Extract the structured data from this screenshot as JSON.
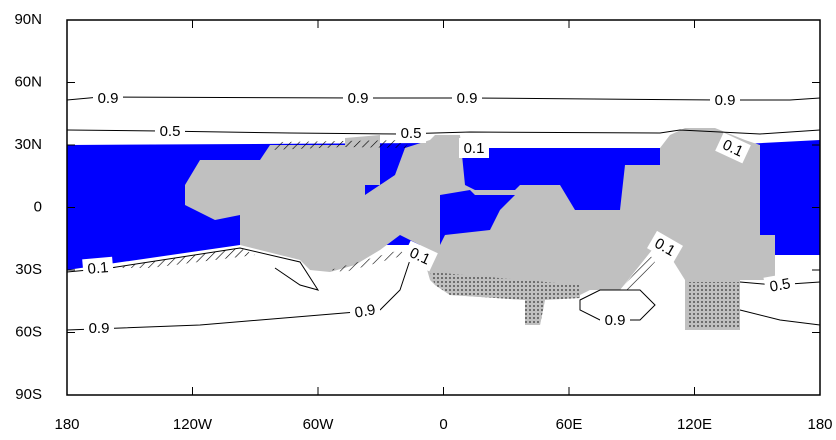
{
  "map": {
    "xlim": [
      -180,
      180
    ],
    "ylim": [
      -90,
      90
    ],
    "xticks": [
      {
        "value": -180,
        "label": "180"
      },
      {
        "value": -120,
        "label": "120W"
      },
      {
        "value": -60,
        "label": "60W"
      },
      0,
      {
        "value": 60,
        "label": "60E"
      },
      {
        "value": 120,
        "label": "120E"
      },
      {
        "value": 180,
        "label": "180"
      }
    ],
    "yticks": [
      {
        "value": 90,
        "label": "90N"
      },
      {
        "value": 60,
        "label": "60N"
      },
      {
        "value": 30,
        "label": "30N"
      },
      0,
      {
        "value": -30,
        "label": "30S"
      },
      {
        "value": -60,
        "label": "60S"
      },
      {
        "value": -90,
        "label": "90S"
      }
    ],
    "contour_levels": [
      0.1,
      0.5,
      0.9
    ]
  }
}
